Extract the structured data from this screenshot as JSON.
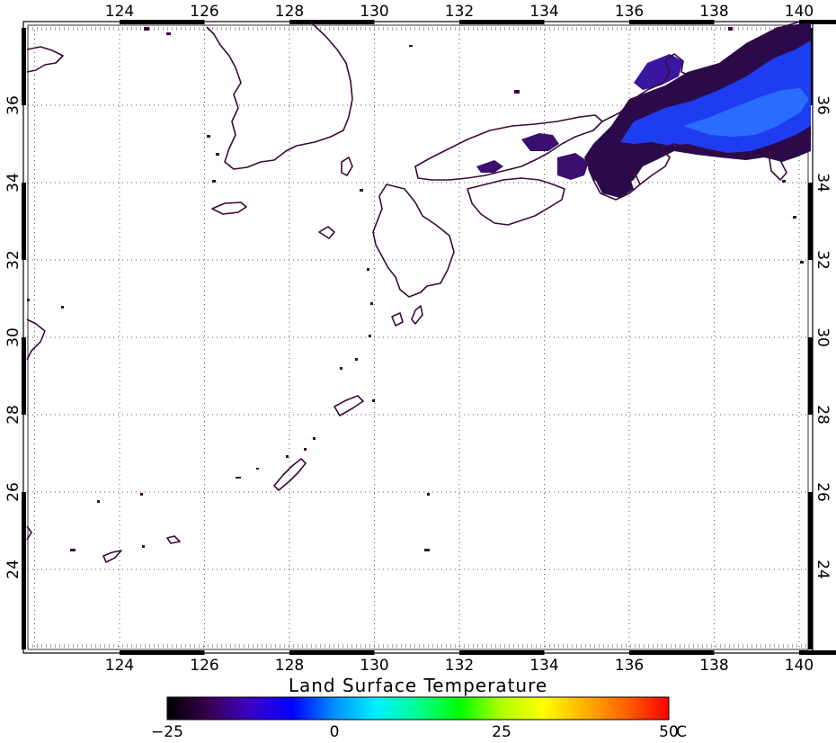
{
  "map": {
    "lon_labels": [
      "124",
      "126",
      "128",
      "130",
      "132",
      "134",
      "136",
      "138",
      "140"
    ],
    "lat_labels": [
      "24",
      "26",
      "28",
      "30",
      "32",
      "34",
      "36"
    ],
    "gridlines": "dotted",
    "coastline_color": "#3a0a3a",
    "land_fill_color": "#ffffff"
  },
  "colorbar": {
    "title": "Land Surface Temperature",
    "tick_labels": [
      "−25",
      "0",
      "25",
      "50"
    ],
    "unit": "C",
    "range": [
      -25,
      50
    ],
    "colors": [
      "#000000",
      "#3a0050",
      "#3b00c8",
      "#0000ff",
      "#0090ff",
      "#00f0ff",
      "#00ff90",
      "#00ff00",
      "#b0ff00",
      "#ffff00",
      "#ffb000",
      "#ff6000",
      "#ff0000"
    ]
  },
  "data_colors": {
    "cold_dark": "#2a0a4a",
    "cold_purple": "#4a1ab0",
    "cold_blue": "#1040ff",
    "cold_light": "#2a70ff"
  }
}
